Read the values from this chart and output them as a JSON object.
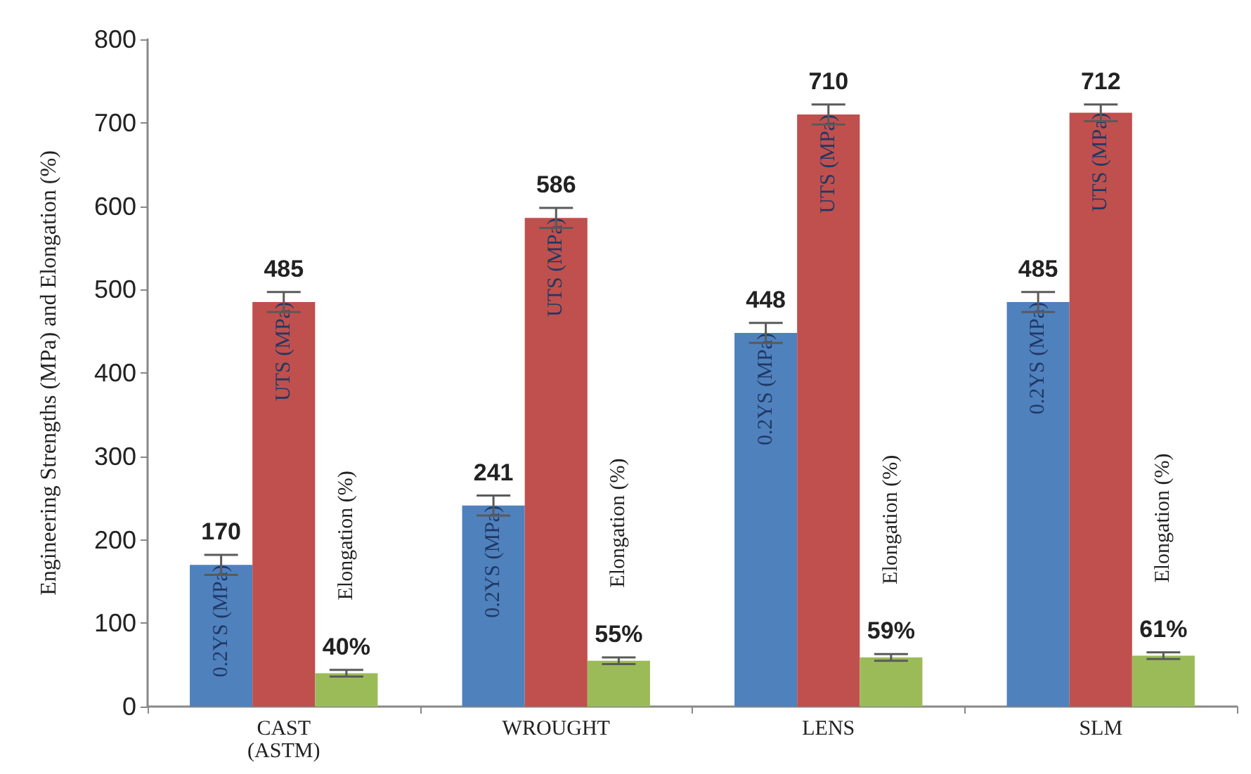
{
  "chart_data": {
    "type": "bar",
    "ylabel": "Engineering Strengths (MPa) and Elongation (%)",
    "categories": [
      "CAST\n(ASTM)",
      "WROUGHT",
      "LENS",
      "SLM"
    ],
    "series": [
      {
        "name": "0.2YS (MPa)",
        "color": "#4f81bd",
        "values": [
          170,
          241,
          448,
          485
        ],
        "errors": [
          12,
          12,
          12,
          12
        ],
        "value_labels": [
          "170",
          "241",
          "448",
          "485"
        ]
      },
      {
        "name": "UTS (MPa)",
        "color": "#c0504d",
        "values": [
          485,
          586,
          710,
          712
        ],
        "errors": [
          12,
          12,
          12,
          10
        ],
        "value_labels": [
          "485",
          "586",
          "710",
          "712"
        ]
      },
      {
        "name": "Elongation (%)",
        "color": "#9bbb59",
        "values": [
          40,
          55,
          59,
          61
        ],
        "errors": [
          4,
          4,
          4,
          4
        ],
        "value_labels": [
          "40%",
          "55%",
          "59%",
          "61%"
        ]
      }
    ],
    "ylim": [
      0,
      800
    ],
    "yticks": [
      0,
      100,
      200,
      300,
      400,
      500,
      600,
      700,
      800
    ],
    "grid": false,
    "legend": false
  }
}
